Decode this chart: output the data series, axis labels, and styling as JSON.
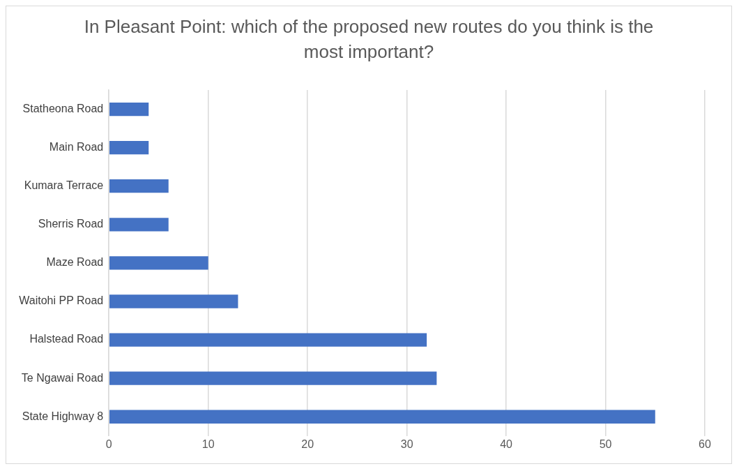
{
  "chart_data": {
    "type": "bar",
    "orientation": "horizontal",
    "title": "In Pleasant Point: which of the proposed new routes do you think is the most important?",
    "categories": [
      "Statheona Road",
      "Main Road",
      "Kumara Terrace",
      "Sherris Road",
      "Maze Road",
      "Waitohi PP Road",
      "Halstead Road",
      "Te Ngawai Road",
      "State Highway 8"
    ],
    "values": [
      4,
      4,
      6,
      6,
      10,
      13,
      32,
      33,
      55
    ],
    "color": "#4472c4",
    "xlim": [
      0,
      60
    ],
    "xticks": [
      0,
      10,
      20,
      30,
      40,
      50,
      60
    ],
    "grid": "x",
    "legend": false
  }
}
